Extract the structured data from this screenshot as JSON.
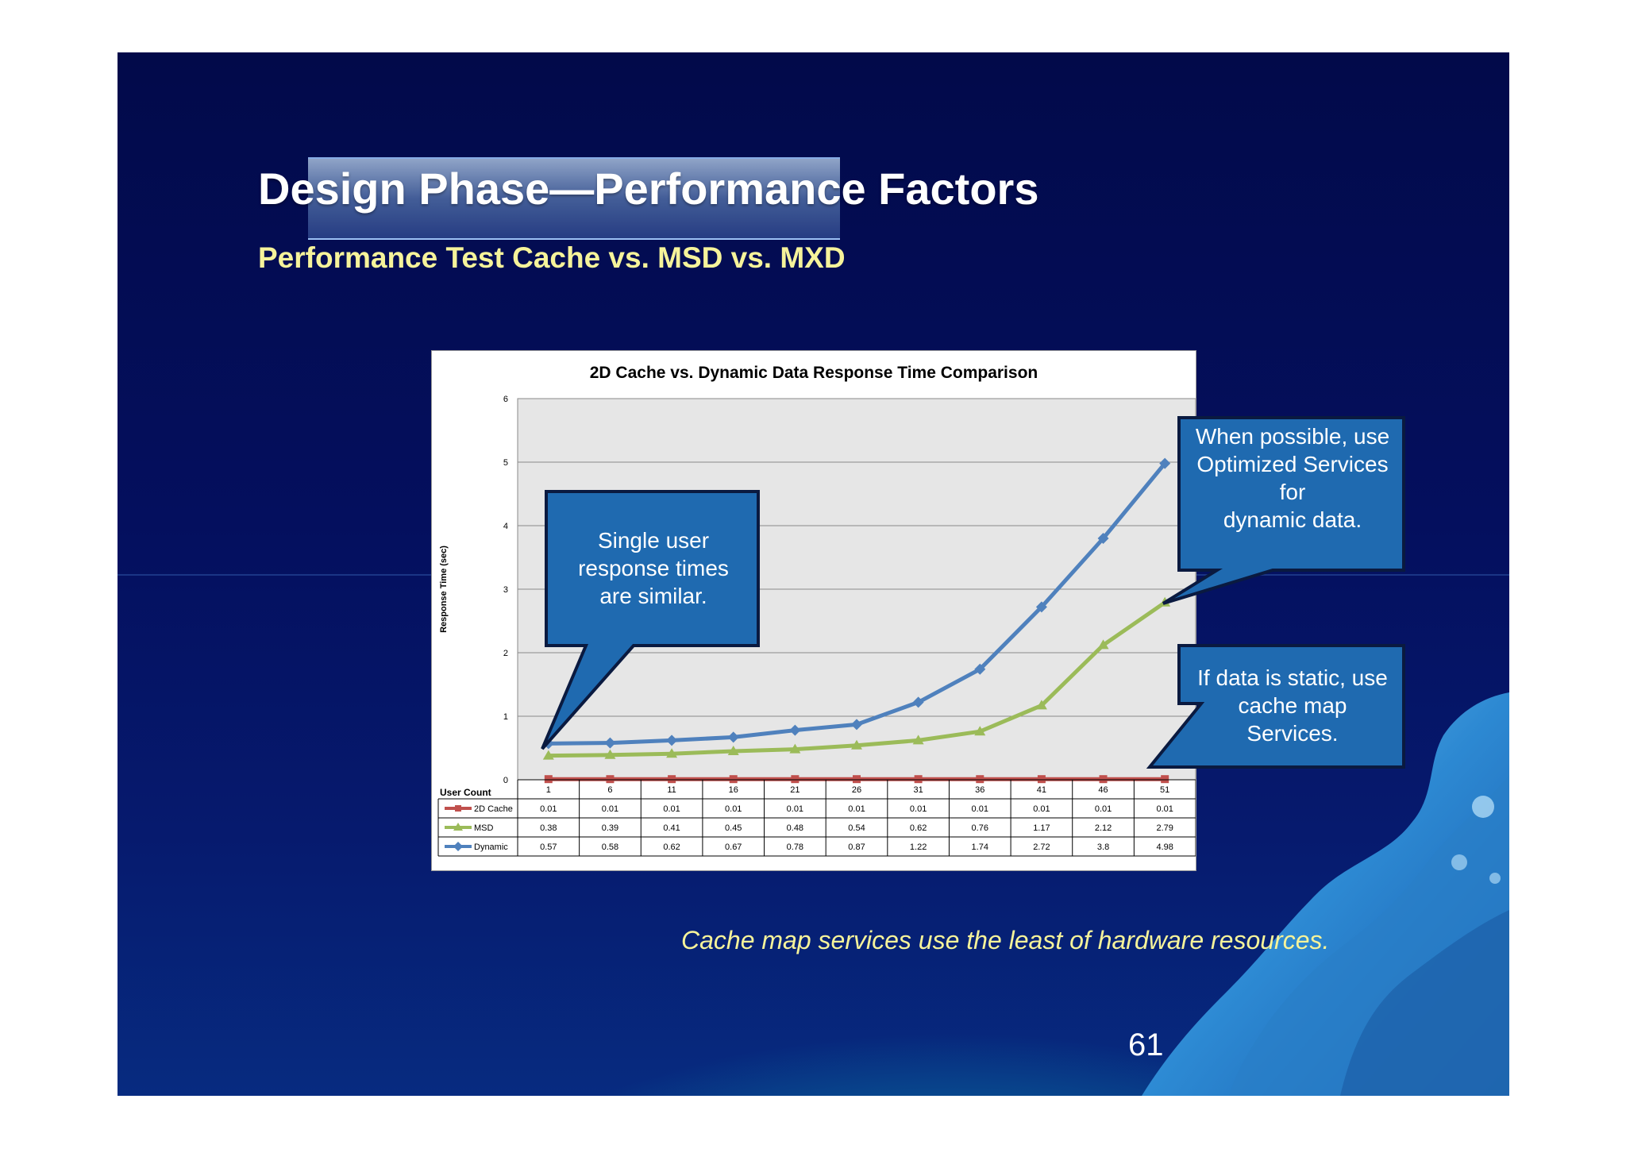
{
  "slide": {
    "title": "Design Phase—Performance Factors",
    "subtitle": "Performance Test Cache vs. MSD vs. MXD",
    "footer_note": "Cache map services use the least of hardware resources.",
    "page_number": "61"
  },
  "callouts": {
    "single_user": [
      "Single user",
      "response times",
      "are similar."
    ],
    "optimized": [
      "When possible, use",
      "Optimized Services",
      "for",
      "dynamic data."
    ],
    "static": [
      "If data is static, use",
      "cache map",
      "Services."
    ]
  },
  "colors": {
    "cache": "#c0504d",
    "msd": "#9bbb59",
    "dynamic": "#4f81bd",
    "plot_bg": "#e6e6e6",
    "callout_fill": "#1f6ab0"
  },
  "chart_data": {
    "type": "line",
    "title": "2D Cache vs. Dynamic Data Response Time Comparison",
    "ylabel": "Response Time  (sec)",
    "xlabel": "User Count",
    "ylim": [
      0,
      6
    ],
    "yticks": [
      0,
      1,
      2,
      3,
      4,
      5,
      6
    ],
    "grid": true,
    "categories": [
      "1",
      "6",
      "11",
      "16",
      "21",
      "26",
      "31",
      "36",
      "41",
      "46",
      "51"
    ],
    "series": [
      {
        "name": "2D Cache",
        "marker": "square",
        "values": [
          0.01,
          0.01,
          0.01,
          0.01,
          0.01,
          0.01,
          0.01,
          0.01,
          0.01,
          0.01,
          0.01
        ]
      },
      {
        "name": "MSD",
        "marker": "triangle",
        "values": [
          0.38,
          0.39,
          0.41,
          0.45,
          0.48,
          0.54,
          0.62,
          0.76,
          1.17,
          2.12,
          2.79
        ]
      },
      {
        "name": "Dynamic",
        "marker": "diamond",
        "values": [
          0.57,
          0.58,
          0.62,
          0.67,
          0.78,
          0.87,
          1.22,
          1.74,
          2.72,
          3.8,
          4.98
        ]
      }
    ],
    "data_table": true
  }
}
